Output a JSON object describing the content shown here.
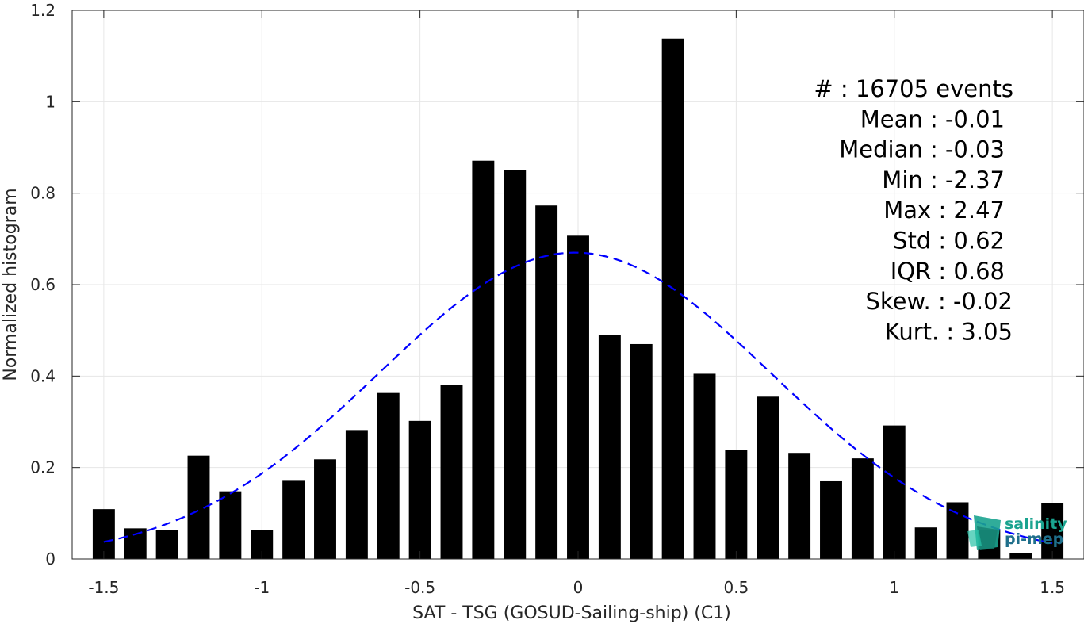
{
  "chart_data": {
    "type": "bar",
    "xlabel": "SAT - TSG (GOSUD-Sailing-ship) (C1)",
    "ylabel": "Normalized histogram",
    "xlim": [
      -1.6,
      1.6
    ],
    "ylim": [
      0,
      1.2
    ],
    "xticks": [
      -1.5,
      -1,
      -0.5,
      0,
      0.5,
      1,
      1.5
    ],
    "xtick_labels": [
      "-1.5",
      "-1",
      "-0.5",
      "0",
      "0.5",
      "1",
      "1.5"
    ],
    "yticks": [
      0,
      0.2,
      0.4,
      0.6,
      0.8,
      1,
      1.2
    ],
    "ytick_labels": [
      "0",
      "0.2",
      "0.4",
      "0.6",
      "0.8",
      "1",
      "1.2"
    ],
    "grid": true,
    "bar_width": 0.07,
    "x": [
      -1.5,
      -1.4,
      -1.3,
      -1.2,
      -1.1,
      -1.0,
      -0.9,
      -0.8,
      -0.7,
      -0.6,
      -0.5,
      -0.4,
      -0.3,
      -0.2,
      -0.1,
      0.0,
      0.1,
      0.2,
      0.3,
      0.4,
      0.5,
      0.6,
      0.7,
      0.8,
      0.9,
      1.0,
      1.1,
      1.2,
      1.3,
      1.4,
      1.5
    ],
    "values": [
      0.109,
      0.067,
      0.064,
      0.226,
      0.148,
      0.064,
      0.171,
      0.218,
      0.282,
      0.363,
      0.302,
      0.38,
      0.871,
      0.85,
      0.773,
      0.707,
      0.49,
      0.47,
      1.138,
      0.405,
      0.238,
      0.355,
      0.232,
      0.17,
      0.22,
      0.292,
      0.069,
      0.124,
      0.064,
      0.013,
      0.123
    ],
    "bar_color": "#000000",
    "fit_curve": {
      "style": "dashed",
      "color": "#0000ff",
      "mean": -0.01,
      "std": 0.62,
      "peak": 0.67,
      "x_range": [
        -1.5,
        1.5
      ]
    },
    "stats": [
      "#  : 16705 events",
      "Mean : -0.01",
      "Median : -0.03",
      "Min : -2.37",
      "Max : 2.47",
      "Std : 0.62",
      "IQR : 0.68",
      "Skew. : -0.02",
      "Kurt. : 3.05"
    ]
  },
  "logo": {
    "line1": "salinity",
    "line2": "pi-mep",
    "color1": "#1aa38f",
    "color2": "#1f6f8b"
  }
}
